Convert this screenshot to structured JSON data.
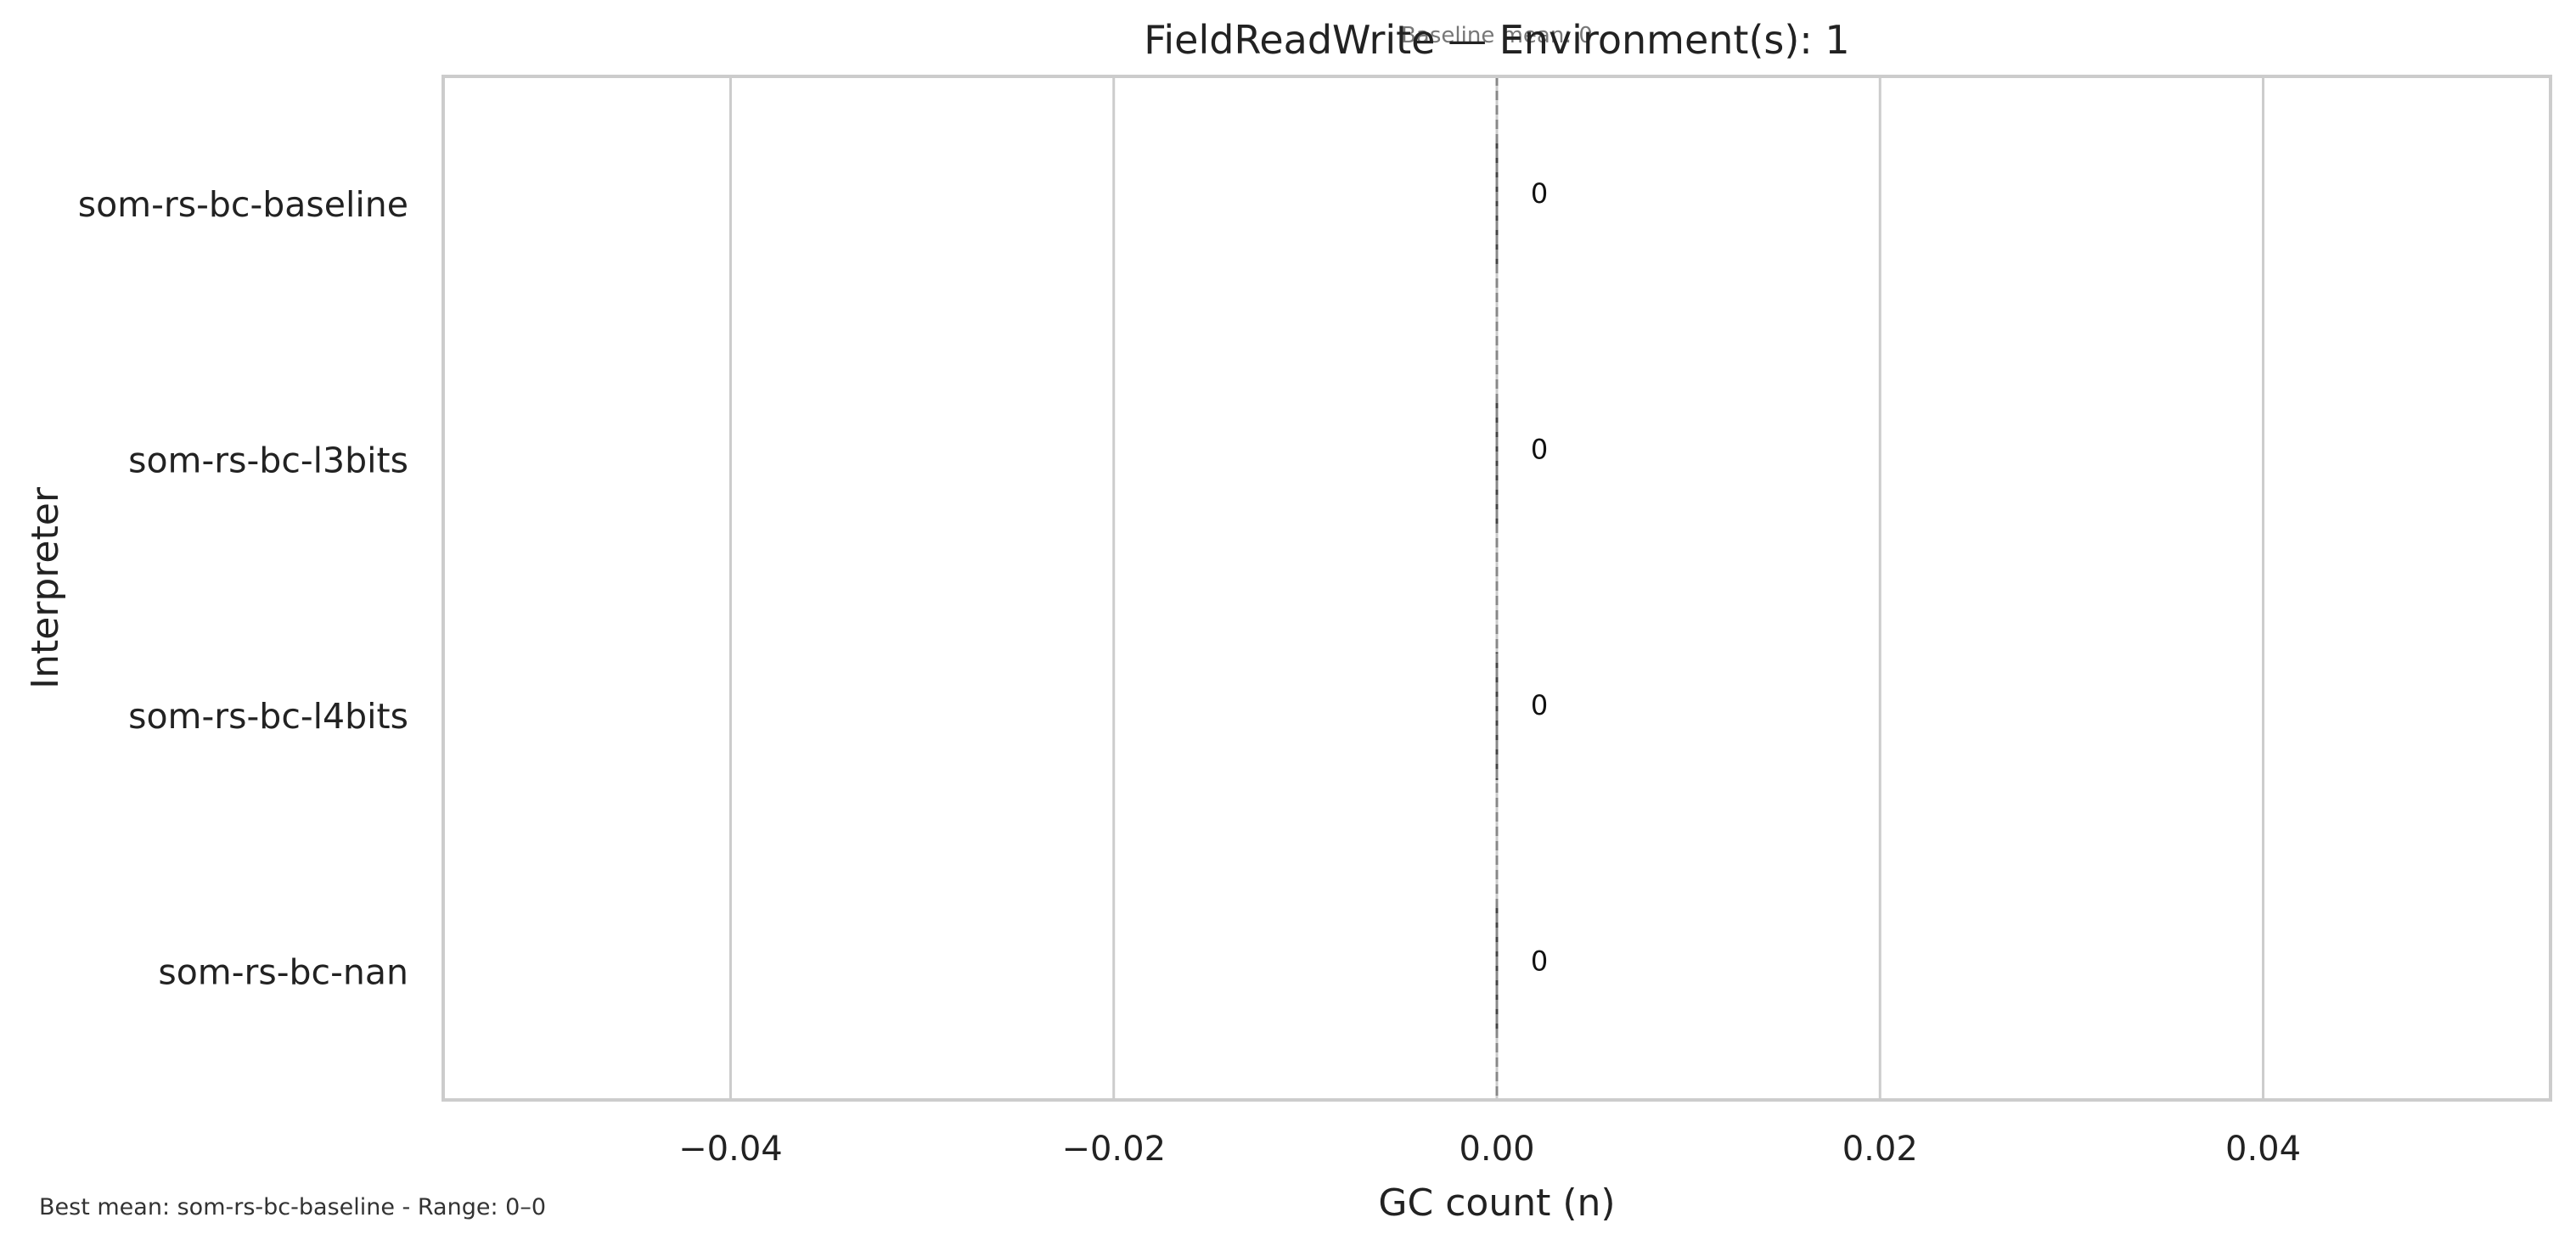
{
  "chart_data": {
    "type": "bar",
    "orientation": "horizontal",
    "title": "FieldReadWrite — Environment(s): 1",
    "xlabel": "GC count (n)",
    "ylabel": "Interpreter",
    "categories": [
      "som-rs-bc-baseline",
      "som-rs-bc-l3bits",
      "som-rs-bc-l4bits",
      "som-rs-bc-nan"
    ],
    "values": [
      0,
      0,
      0,
      0
    ],
    "data_labels": [
      "0",
      "0",
      "0",
      "0"
    ],
    "xlim": [
      -0.055,
      0.055
    ],
    "xticks": [
      -0.04,
      -0.02,
      0.0,
      0.02,
      0.04
    ],
    "xtick_labels": [
      "−0.04",
      "−0.02",
      "0.00",
      "0.02",
      "0.04"
    ],
    "grid": true,
    "baseline": {
      "value": 0,
      "label": "Baseline mean: 0"
    },
    "colors": {
      "axes_edge": "#cccccc",
      "grid": "#cccccc",
      "bar_edge": "#444444",
      "baseline": "#888888",
      "text": "#222222"
    }
  },
  "footnote": "Best mean: som-rs-bc-baseline - Range: 0–0"
}
